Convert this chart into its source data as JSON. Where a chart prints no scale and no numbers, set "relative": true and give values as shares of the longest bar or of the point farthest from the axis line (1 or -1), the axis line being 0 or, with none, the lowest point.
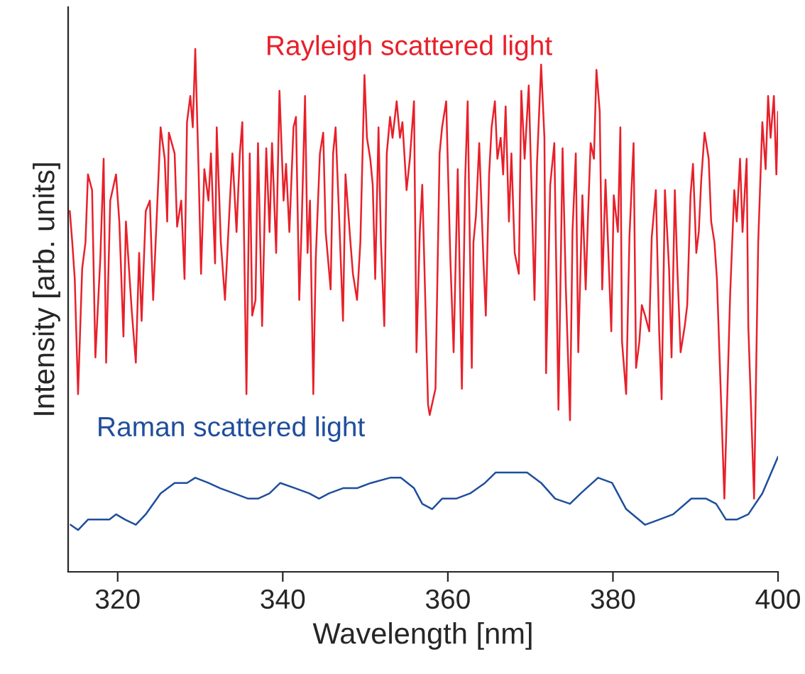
{
  "chart_data": {
    "type": "line",
    "xlabel": "Wavelength [nm]",
    "ylabel": "Intensity [arb. units]",
    "relative": true,
    "xlim": [
      314,
      400
    ],
    "xticks": [
      320,
      340,
      360,
      380,
      400
    ],
    "tick_labels": "x",
    "grid": false,
    "legend": false,
    "marker": "none",
    "line_style": "solid",
    "series": [
      {
        "name": "Rayleigh scattered light",
        "color": "#e8202a",
        "x": [
          314.2,
          314.5,
          314.8,
          315.2,
          315.7,
          316.1,
          316.4,
          316.9,
          317.3,
          317.9,
          318.3,
          318.6,
          319.1,
          319.8,
          320.2,
          320.7,
          321.0,
          321.7,
          322.2,
          322.6,
          322.9,
          323.4,
          323.9,
          324.3,
          324.6,
          325.2,
          325.7,
          326.0,
          326.2,
          326.9,
          327.2,
          327.7,
          328.1,
          328.4,
          328.8,
          329.1,
          329.4,
          329.8,
          330.1,
          330.5,
          331.0,
          331.3,
          331.8,
          332.0,
          332.5,
          333.0,
          333.6,
          333.9,
          334.4,
          334.8,
          335.1,
          335.6,
          336.0,
          336.3,
          336.7,
          337.0,
          337.5,
          338.0,
          338.4,
          338.7,
          339.2,
          339.6,
          340.1,
          340.4,
          340.8,
          341.3,
          341.6,
          342.0,
          342.3,
          342.7,
          343.0,
          343.3,
          343.7,
          344.0,
          344.5,
          344.9,
          345.2,
          345.8,
          346.1,
          346.4,
          346.8,
          347.3,
          347.6,
          348.2,
          348.5,
          349.0,
          349.4,
          349.9,
          350.2,
          350.6,
          350.9,
          351.2,
          351.6,
          351.9,
          352.3,
          352.6,
          353.0,
          353.3,
          353.8,
          354.2,
          354.5,
          355.0,
          355.4,
          355.9,
          356.2,
          356.6,
          356.9,
          357.6,
          357.8,
          358.5,
          359.0,
          359.3,
          359.8,
          360.3,
          360.7,
          361.2,
          361.7,
          362.1,
          362.4,
          362.9,
          363.1,
          363.4,
          363.8,
          364.3,
          364.6,
          365.0,
          365.3,
          365.7,
          366.0,
          366.4,
          366.7,
          367.0,
          367.4,
          367.7,
          368.1,
          368.6,
          368.9,
          369.3,
          369.8,
          370.5,
          370.8,
          371.3,
          371.7,
          371.9,
          372.4,
          372.9,
          373.4,
          373.9,
          374.3,
          374.8,
          375.1,
          375.5,
          375.8,
          376.3,
          376.7,
          377.0,
          377.3,
          377.7,
          378.0,
          378.4,
          378.7,
          379.1,
          379.4,
          379.8,
          380.1,
          380.6,
          380.9,
          381.1,
          381.6,
          382.0,
          382.5,
          382.8,
          383.2,
          383.5,
          383.9,
          384.4,
          384.7,
          385.2,
          385.6,
          385.9,
          386.3,
          386.8,
          387.1,
          387.5,
          387.8,
          388.2,
          388.7,
          389.0,
          389.4,
          389.7,
          390.1,
          390.4,
          390.7,
          391.1,
          391.6,
          391.9,
          392.3,
          392.6,
          393.5,
          394.2,
          394.7,
          395.0,
          395.4,
          395.7,
          396.2,
          396.4,
          397.1,
          397.6,
          398.1,
          398.5,
          398.8,
          399.1,
          399.5,
          399.8,
          400.0
        ],
        "values": [
          0.69,
          0.63,
          0.56,
          0.34,
          0.58,
          0.63,
          0.76,
          0.73,
          0.41,
          0.6,
          0.79,
          0.4,
          0.71,
          0.76,
          0.67,
          0.45,
          0.67,
          0.5,
          0.4,
          0.61,
          0.48,
          0.69,
          0.71,
          0.52,
          0.63,
          0.85,
          0.79,
          0.67,
          0.84,
          0.8,
          0.66,
          0.71,
          0.56,
          0.86,
          0.91,
          0.85,
          1.0,
          0.77,
          0.57,
          0.77,
          0.71,
          0.8,
          0.59,
          0.85,
          0.63,
          0.52,
          0.71,
          0.8,
          0.65,
          0.8,
          0.86,
          0.34,
          0.8,
          0.49,
          0.52,
          0.82,
          0.47,
          0.81,
          0.65,
          0.82,
          0.61,
          0.92,
          0.71,
          0.78,
          0.65,
          0.85,
          0.87,
          0.52,
          0.67,
          0.91,
          0.61,
          0.71,
          0.34,
          0.6,
          0.8,
          0.84,
          0.65,
          0.54,
          0.8,
          0.85,
          0.69,
          0.48,
          0.76,
          0.63,
          0.57,
          0.52,
          0.63,
          0.95,
          0.83,
          0.79,
          0.74,
          0.56,
          0.85,
          0.63,
          0.47,
          0.8,
          0.87,
          0.83,
          0.9,
          0.83,
          0.86,
          0.73,
          0.79,
          0.9,
          0.42,
          0.65,
          0.74,
          0.32,
          0.3,
          0.35,
          0.8,
          0.85,
          0.9,
          0.6,
          0.42,
          0.77,
          0.35,
          0.75,
          0.9,
          0.39,
          0.63,
          0.68,
          0.82,
          0.6,
          0.49,
          0.76,
          0.85,
          0.9,
          0.79,
          0.83,
          0.76,
          0.89,
          0.67,
          0.8,
          0.61,
          0.57,
          0.92,
          0.79,
          0.93,
          0.52,
          0.78,
          0.97,
          0.83,
          0.38,
          0.74,
          0.82,
          0.31,
          0.81,
          0.54,
          0.29,
          0.65,
          0.8,
          0.42,
          0.72,
          0.54,
          0.69,
          0.82,
          0.79,
          0.96,
          0.88,
          0.54,
          0.75,
          0.63,
          0.46,
          0.72,
          0.65,
          0.85,
          0.44,
          0.34,
          0.64,
          0.82,
          0.39,
          0.44,
          0.51,
          0.49,
          0.46,
          0.64,
          0.73,
          0.46,
          0.33,
          0.73,
          0.58,
          0.41,
          0.73,
          0.58,
          0.42,
          0.47,
          0.51,
          0.72,
          0.78,
          0.61,
          0.65,
          0.75,
          0.84,
          0.79,
          0.67,
          0.63,
          0.56,
          0.14,
          0.53,
          0.73,
          0.67,
          0.79,
          0.65,
          0.79,
          0.47,
          0.14,
          0.63,
          0.86,
          0.77,
          0.91,
          0.83,
          0.91,
          0.76,
          0.88
        ]
      },
      {
        "name": "Raman scattered light",
        "color": "#1f4e9c",
        "x": [
          314.3,
          315.2,
          316.4,
          318.1,
          319.0,
          319.8,
          320.9,
          322.2,
          323.4,
          325.2,
          326.9,
          328.4,
          329.4,
          331.0,
          332.4,
          334.1,
          335.8,
          337.0,
          338.4,
          339.7,
          341.5,
          343.2,
          344.4,
          345.6,
          347.3,
          349.0,
          350.7,
          353.0,
          354.3,
          355.9,
          356.9,
          358.1,
          359.3,
          361.0,
          362.7,
          364.5,
          365.8,
          367.2,
          369.6,
          371.3,
          373.0,
          374.8,
          376.1,
          378.2,
          379.9,
          381.6,
          383.9,
          385.6,
          387.3,
          389.5,
          391.3,
          392.5,
          393.7,
          395.0,
          396.4,
          398.1,
          400.0
        ],
        "values": [
          0.09,
          0.08,
          0.1,
          0.1,
          0.1,
          0.11,
          0.1,
          0.09,
          0.11,
          0.15,
          0.17,
          0.17,
          0.18,
          0.17,
          0.16,
          0.15,
          0.14,
          0.14,
          0.15,
          0.17,
          0.16,
          0.15,
          0.14,
          0.15,
          0.16,
          0.16,
          0.17,
          0.18,
          0.18,
          0.16,
          0.13,
          0.12,
          0.14,
          0.14,
          0.15,
          0.17,
          0.19,
          0.19,
          0.19,
          0.17,
          0.14,
          0.13,
          0.15,
          0.18,
          0.17,
          0.12,
          0.09,
          0.1,
          0.11,
          0.14,
          0.14,
          0.13,
          0.1,
          0.1,
          0.11,
          0.15,
          0.22
        ]
      }
    ]
  }
}
